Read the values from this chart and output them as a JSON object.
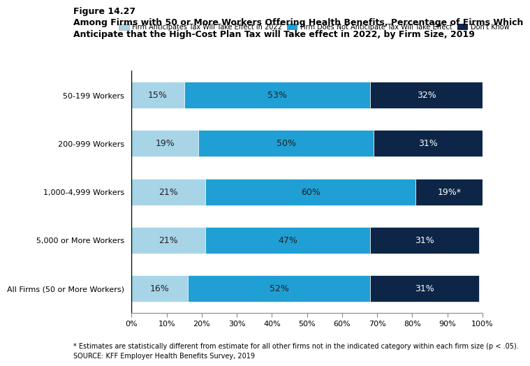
{
  "title_line1": "Figure 14.27",
  "title_line2": "Among Firms with 50 or More Workers Offering Health Benefits, Percentage of Firms Which\nAnticipate that the High-Cost Plan Tax will Take effect in 2022, by Firm Size, 2019",
  "categories": [
    "50-199 Workers",
    "200-999 Workers",
    "1,000-4,999 Workers",
    "5,000 or More Workers",
    "All Firms (50 or More Workers)"
  ],
  "anticipates": [
    15,
    19,
    21,
    21,
    16
  ],
  "does_not": [
    53,
    50,
    60,
    47,
    52
  ],
  "dont_know": [
    32,
    31,
    19,
    31,
    31
  ],
  "labels_anticipates": [
    "15%",
    "19%",
    "21%",
    "21%",
    "16%"
  ],
  "labels_does_not": [
    "53%",
    "50%",
    "60%",
    "47%",
    "52%"
  ],
  "labels_dont_know": [
    "32%",
    "31%",
    "19%*",
    "31%",
    "31%"
  ],
  "color_anticipates": "#a8d4e8",
  "color_does_not": "#1f9fd4",
  "color_dont_know": "#0d2547",
  "legend_labels": [
    "Firm Anticipates Tax Will Take Effect in 2022",
    "Firm Does Not Anticipate Tax Will Take Effect",
    "Don't Know"
  ],
  "footnote1": "* Estimates are statistically different from estimate for all other firms not in the indicated category within each firm size (p < .05).",
  "footnote2": "SOURCE: KFF Employer Health Benefits Survey, 2019",
  "background_color": "#ffffff",
  "bar_height": 0.55,
  "xtick_labels": [
    "0%",
    "10%",
    "20%",
    "30%",
    "40%",
    "50%",
    "60%",
    "70%",
    "80%",
    "90%",
    "100%"
  ],
  "xtick_vals": [
    0,
    10,
    20,
    30,
    40,
    50,
    60,
    70,
    80,
    90,
    100
  ]
}
